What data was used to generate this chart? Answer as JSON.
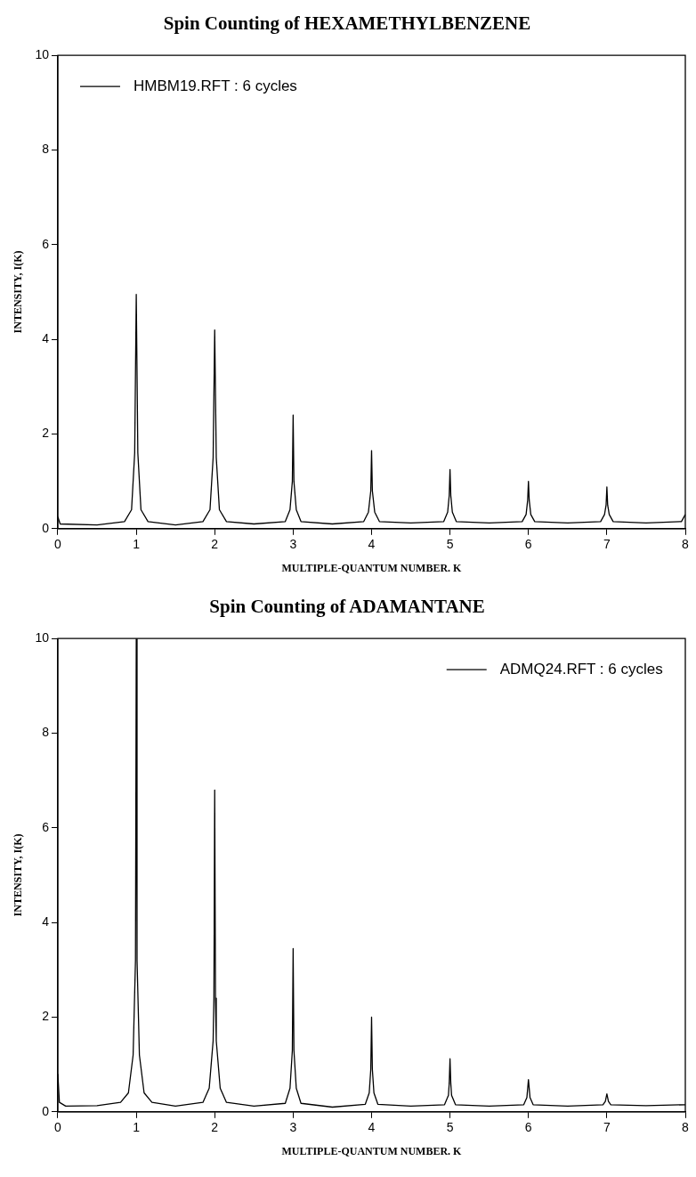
{
  "chart_data": [
    {
      "type": "line",
      "title": "Spin Counting of HEXAMETHYLBENZENE",
      "xlabel": "MULTIPLE-QUANTUM NUMBER. K",
      "ylabel": "INTENSITY, I(K)",
      "xlim": [
        0,
        8
      ],
      "xticks": [
        0,
        1,
        2,
        3,
        4,
        5,
        6,
        7,
        8
      ],
      "ylim": [
        0,
        10
      ],
      "yticks": [
        0,
        2,
        4,
        6,
        8,
        10
      ],
      "grid": false,
      "legend": "top left",
      "marker": "none",
      "line_style": "solid",
      "series": [
        {
          "name": "HMBM19.RFT : 6 cycles",
          "color": "#000000",
          "x": [
            0,
            0.03,
            0.5,
            0.85,
            0.94,
            0.98,
            1,
            1.02,
            1.06,
            1.15,
            1.5,
            1.85,
            1.94,
            1.98,
            2,
            2.02,
            2.06,
            2.15,
            2.5,
            2.9,
            2.96,
            2.99,
            3,
            3.01,
            3.04,
            3.1,
            3.5,
            3.9,
            3.96,
            3.99,
            4,
            4.01,
            4.04,
            4.1,
            4.5,
            4.92,
            4.97,
            4.99,
            5,
            5.01,
            5.03,
            5.08,
            5.5,
            5.92,
            5.97,
            5.99,
            6,
            6.01,
            6.03,
            6.08,
            6.5,
            6.92,
            6.97,
            6.99,
            7,
            7.01,
            7.03,
            7.08,
            7.5,
            7.95,
            8
          ],
          "values": [
            0.25,
            0.1,
            0.08,
            0.15,
            0.4,
            1.6,
            4.95,
            1.6,
            0.4,
            0.15,
            0.08,
            0.15,
            0.4,
            1.5,
            4.2,
            1.5,
            0.4,
            0.15,
            0.1,
            0.15,
            0.4,
            1.0,
            2.4,
            1.0,
            0.4,
            0.15,
            0.1,
            0.15,
            0.35,
            0.8,
            1.65,
            0.8,
            0.35,
            0.15,
            0.12,
            0.15,
            0.35,
            0.7,
            1.25,
            0.7,
            0.35,
            0.15,
            0.12,
            0.15,
            0.3,
            0.6,
            1.0,
            0.6,
            0.3,
            0.15,
            0.12,
            0.15,
            0.3,
            0.5,
            0.88,
            0.5,
            0.3,
            0.15,
            0.12,
            0.15,
            0.3
          ]
        }
      ]
    },
    {
      "type": "line",
      "title": "Spin Counting of ADAMANTANE",
      "xlabel": "MULTIPLE-QUANTUM NUMBER. K",
      "ylabel": "INTENSITY, I(K)",
      "xlim": [
        0,
        8
      ],
      "xticks": [
        0,
        1,
        2,
        3,
        4,
        5,
        6,
        7,
        8
      ],
      "ylim": [
        0,
        10
      ],
      "yticks": [
        0,
        2,
        4,
        6,
        8,
        10
      ],
      "grid": false,
      "legend": "top right",
      "marker": "none",
      "line_style": "solid",
      "series": [
        {
          "name": "ADMQ24.RFT : 6 cycles",
          "color": "#000000",
          "x": [
            0,
            0.02,
            0.1,
            0.5,
            0.8,
            0.9,
            0.96,
            0.99,
            1,
            1.01,
            1.04,
            1.1,
            1.2,
            1.5,
            1.85,
            1.93,
            1.98,
            1.99,
            2,
            2.01,
            2.02,
            2.07,
            2.15,
            2.5,
            2.9,
            2.96,
            2.99,
            3,
            3.01,
            3.04,
            3.1,
            3.5,
            3.92,
            3.97,
            3.99,
            4,
            4.01,
            4.03,
            4.08,
            4.5,
            4.93,
            4.98,
            4.99,
            5,
            5.01,
            5.02,
            5.07,
            5.5,
            5.94,
            5.98,
            6,
            6.02,
            6.06,
            6.5,
            6.95,
            6.98,
            7,
            7.02,
            7.05,
            7.5,
            8
          ],
          "values": [
            0.8,
            0.2,
            0.12,
            0.13,
            0.2,
            0.4,
            1.2,
            3.2,
            10,
            3.2,
            1.2,
            0.4,
            0.2,
            0.12,
            0.2,
            0.5,
            1.5,
            2.4,
            6.8,
            2.4,
            1.5,
            0.5,
            0.2,
            0.12,
            0.18,
            0.5,
            1.3,
            3.45,
            1.3,
            0.5,
            0.18,
            0.1,
            0.16,
            0.4,
            0.9,
            2.0,
            0.9,
            0.4,
            0.16,
            0.12,
            0.15,
            0.35,
            0.6,
            1.12,
            0.6,
            0.35,
            0.15,
            0.12,
            0.15,
            0.3,
            0.68,
            0.3,
            0.15,
            0.12,
            0.15,
            0.22,
            0.38,
            0.22,
            0.15,
            0.13,
            0.15
          ]
        }
      ]
    }
  ]
}
